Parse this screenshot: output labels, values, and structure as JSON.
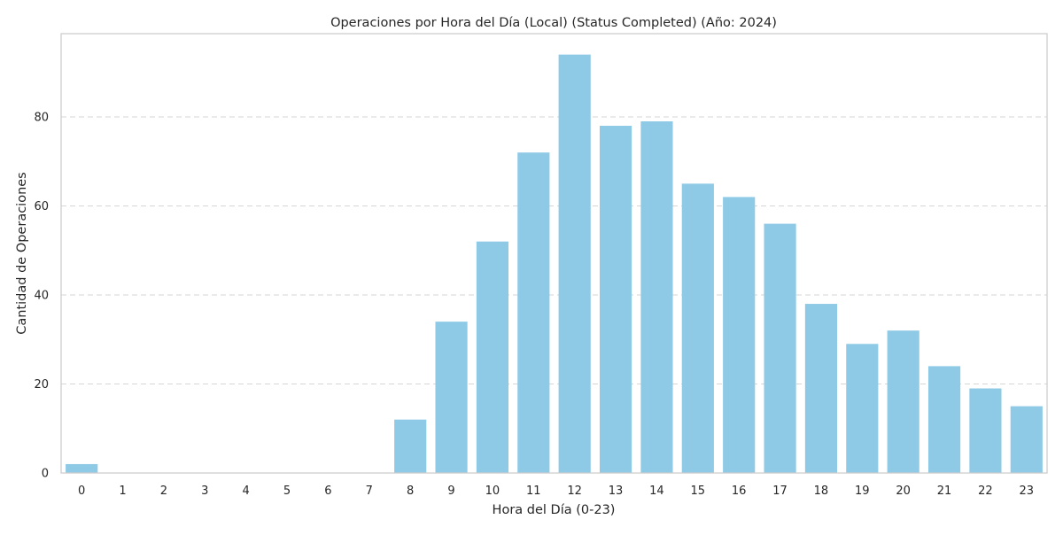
{
  "chart_data": {
    "type": "bar",
    "title": "Operaciones por Hora del Día (Local) (Status Completed) (Año: 2024)",
    "xlabel": "Hora del Día (0-23)",
    "ylabel": "Cantidad de Operaciones",
    "categories": [
      "0",
      "1",
      "2",
      "3",
      "4",
      "5",
      "6",
      "7",
      "8",
      "9",
      "10",
      "11",
      "12",
      "13",
      "14",
      "15",
      "16",
      "17",
      "18",
      "19",
      "20",
      "21",
      "22",
      "23"
    ],
    "values": [
      2,
      0,
      0,
      0,
      0,
      0,
      0,
      0,
      12,
      34,
      52,
      72,
      94,
      78,
      79,
      65,
      62,
      56,
      38,
      29,
      32,
      24,
      19,
      15
    ],
    "yticks": [
      0,
      20,
      40,
      60,
      80
    ],
    "ylim": [
      0,
      98.7
    ],
    "grid": "horizontal dashed",
    "bar_color": "#8ecae6",
    "colors": {
      "bar": "#8ecae6",
      "grid": "#d6d6d6",
      "frame": "#cccccc",
      "text": "#262626"
    }
  }
}
